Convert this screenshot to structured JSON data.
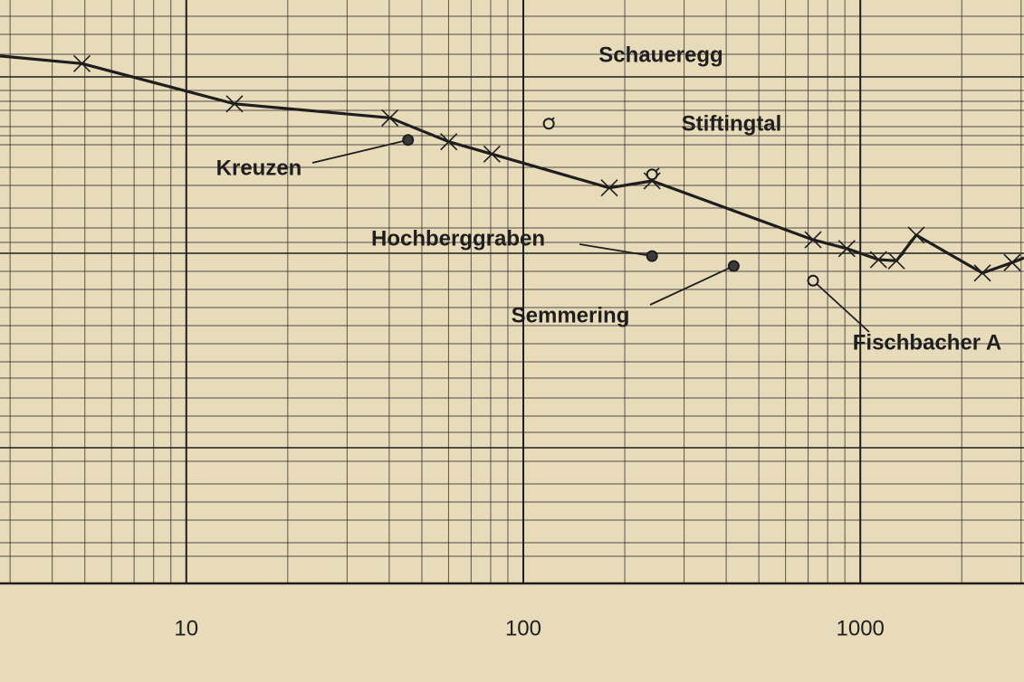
{
  "chart_data": {
    "type": "line",
    "x_scale": "log",
    "xlim": [
      2.8,
      3060
    ],
    "ylim": [
      0,
      100
    ],
    "xticks": [
      10,
      100,
      1000
    ],
    "grid": true,
    "color": "#1e1e1e",
    "series": [
      {
        "color": "#1e1e1e",
        "x": [
          2.8,
          4.9,
          13.9,
          40.2,
          60.1,
          80.7,
          180,
          241,
          724,
          912,
          1132,
          1280,
          1466,
          2303,
          2823,
          3060
        ],
        "values": [
          90.4,
          89.1,
          82.2,
          79.8,
          75.7,
          73.6,
          67.8,
          69.0,
          58.9,
          57.4,
          55.5,
          55.3,
          59.7,
          53.2,
          55.0,
          55.8
        ]
      }
    ],
    "annotations": [
      {
        "text": "Schaueregg",
        "x": 119,
        "y": 78.8,
        "filled": false
      },
      {
        "text": "Stiftingtal",
        "x": 241,
        "y": 70.1,
        "filled": false
      },
      {
        "text": "Kreuzen",
        "x": 45.5,
        "y": 76.0,
        "filled": true
      },
      {
        "text": "Hochberggraben",
        "x": 241,
        "y": 56.1,
        "filled": true
      },
      {
        "text": "Semmering",
        "x": 421,
        "y": 54.4,
        "filled": true
      },
      {
        "text": "Fischbacher A",
        "x": 724,
        "y": 51.9,
        "filled": false
      }
    ]
  }
}
